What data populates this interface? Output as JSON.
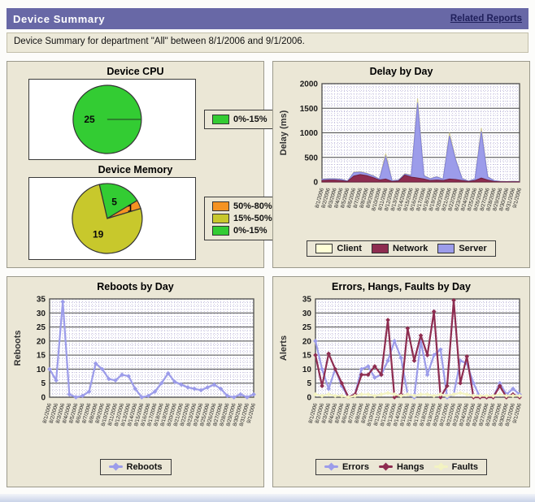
{
  "header": {
    "title": "Device Summary",
    "link_label": "Related Reports"
  },
  "subheader": {
    "text": "Device Summary for department \"All\" between 8/1/2006 and 9/1/2006."
  },
  "colors": {
    "header_bar": "#6868a6",
    "header_link": "#20205c",
    "panel_background": "#ebe7d6",
    "series_purple": "#9c9cea",
    "series_maroon": "#8e2c50",
    "series_cream": "#ffffd6",
    "pie_green": "#33cc33",
    "pie_olive": "#c8c82c",
    "pie_orange": "#f59322"
  },
  "chart_data": [
    {
      "id": "cpu",
      "type": "pie",
      "title": "Device CPU",
      "start_deg": 90,
      "slices": [
        {
          "label": "25",
          "value": 25,
          "color": "#33cc33",
          "legend": "0%-15%"
        }
      ],
      "legend": [
        {
          "label": "0%-15%",
          "color": "#33cc33",
          "marker": "box"
        }
      ]
    },
    {
      "id": "memory",
      "type": "pie",
      "title": "Device Memory",
      "start_deg": -13,
      "slices": [
        {
          "label": "5",
          "value": 5,
          "color": "#33cc33",
          "legend": "0%-15%"
        },
        {
          "label": "1",
          "value": 1,
          "color": "#f59322",
          "legend": "50%-80%",
          "label_r": 0.72
        },
        {
          "label": "19",
          "value": 19,
          "color": "#c8c82c",
          "legend": "15%-50%"
        }
      ],
      "legend": [
        {
          "label": "50%-80%",
          "color": "#f59322",
          "marker": "box"
        },
        {
          "label": "15%-50%",
          "color": "#c8c82c",
          "marker": "box"
        },
        {
          "label": "0%-15%",
          "color": "#33cc33",
          "marker": "box"
        }
      ]
    },
    {
      "id": "delay",
      "type": "area-stack",
      "title": "Delay by Day",
      "ylabel": "Delay (ms)",
      "ymax": 2000,
      "yticks": [
        0,
        500,
        1000,
        1500,
        2000
      ],
      "x": [
        "8/1/2006",
        "8/2/2006",
        "8/3/2006",
        "8/4/2006",
        "8/5/2006",
        "8/6/2006",
        "8/7/2006",
        "8/8/2006",
        "8/9/2006",
        "8/10/2006",
        "8/11/2006",
        "8/12/2006",
        "8/13/2006",
        "8/14/2006",
        "8/15/2006",
        "8/16/2006",
        "8/17/2006",
        "8/18/2006",
        "8/19/2006",
        "8/20/2006",
        "8/21/2006",
        "8/22/2006",
        "8/23/2006",
        "8/24/2006",
        "8/25/2006",
        "8/26/2006",
        "8/27/2006",
        "8/28/2006",
        "8/29/2006",
        "8/30/2006",
        "8/31/2006",
        "9/1/2006"
      ],
      "series": [
        {
          "name": "Network",
          "color": "#8e2c50",
          "stroke": "#6e1f3e",
          "values": [
            30,
            40,
            40,
            30,
            10,
            120,
            150,
            130,
            90,
            40,
            60,
            10,
            20,
            140,
            100,
            80,
            60,
            30,
            40,
            30,
            60,
            50,
            30,
            10,
            30,
            80,
            40,
            10,
            5,
            5,
            5,
            5
          ]
        },
        {
          "name": "Server",
          "color": "#9c9cea",
          "stroke": "#8080d8",
          "values": [
            25,
            25,
            25,
            25,
            8,
            70,
            50,
            42,
            35,
            17,
            460,
            17,
            17,
            20,
            32,
            1530,
            62,
            35,
            64,
            26,
            880,
            390,
            35,
            8,
            26,
            950,
            64,
            17,
            8,
            3,
            8,
            3
          ]
        },
        {
          "name": "Client",
          "color": "#ffffd6",
          "stroke": "#cfc98f",
          "values": [
            5,
            5,
            5,
            5,
            2,
            10,
            10,
            8,
            5,
            3,
            60,
            3,
            3,
            10,
            8,
            90,
            8,
            5,
            6,
            4,
            60,
            20,
            5,
            2,
            4,
            70,
            6,
            3,
            2,
            2,
            2,
            2
          ]
        }
      ],
      "legend": [
        {
          "label": "Client",
          "color": "#ffffd6",
          "marker": "box"
        },
        {
          "label": "Network",
          "color": "#8e2c50",
          "marker": "box"
        },
        {
          "label": "Server",
          "color": "#9c9cea",
          "marker": "box"
        }
      ]
    },
    {
      "id": "reboots",
      "type": "line",
      "title": "Reboots by Day",
      "ylabel": "Reboots",
      "ymax": 35,
      "yticks": [
        0,
        5,
        10,
        15,
        20,
        25,
        30,
        35
      ],
      "x": [
        "8/1/2006",
        "8/2/2006",
        "8/3/2006",
        "8/4/2006",
        "8/5/2006",
        "8/6/2006",
        "8/7/2006",
        "8/8/2006",
        "8/9/2006",
        "8/10/2006",
        "8/11/2006",
        "8/12/2006",
        "8/13/2006",
        "8/14/2006",
        "8/15/2006",
        "8/16/2006",
        "8/17/2006",
        "8/18/2006",
        "8/19/2006",
        "8/20/2006",
        "8/21/2006",
        "8/22/2006",
        "8/23/2006",
        "8/24/2006",
        "8/25/2006",
        "8/26/2006",
        "8/27/2006",
        "8/28/2006",
        "8/29/2006",
        "8/30/2006",
        "8/31/2006",
        "9/1/2006"
      ],
      "series": [
        {
          "name": "Reboots",
          "color": "#9c9cea",
          "values": [
            10,
            6,
            34,
            1,
            0,
            0.5,
            2,
            12,
            10,
            6.5,
            6,
            8,
            7.5,
            3,
            0,
            0.5,
            2,
            5,
            8.5,
            5.5,
            4.5,
            3.5,
            3,
            2.5,
            3.5,
            4.5,
            3,
            0.5,
            0,
            1,
            0,
            1
          ]
        }
      ],
      "legend": [
        {
          "label": "Reboots",
          "color": "#9c9cea",
          "marker": "line"
        }
      ]
    },
    {
      "id": "alerts",
      "type": "line",
      "title": "Errors, Hangs, Faults by Day",
      "ylabel": "Alerts",
      "ymax": 35,
      "yticks": [
        0,
        5,
        10,
        15,
        20,
        25,
        30,
        35
      ],
      "x": [
        "8/1/2006",
        "8/2/2006",
        "8/3/2006",
        "8/4/2006",
        "8/5/2006",
        "8/6/2006",
        "8/7/2006",
        "8/8/2006",
        "8/9/2006",
        "8/10/2006",
        "8/11/2006",
        "8/12/2006",
        "8/13/2006",
        "8/14/2006",
        "8/15/2006",
        "8/16/2006",
        "8/17/2006",
        "8/18/2006",
        "8/19/2006",
        "8/20/2006",
        "8/21/2006",
        "8/22/2006",
        "8/23/2006",
        "8/24/2006",
        "8/25/2006",
        "8/26/2006",
        "8/27/2006",
        "8/28/2006",
        "8/29/2006",
        "8/30/2006",
        "8/31/2006",
        "9/1/2006"
      ],
      "series": [
        {
          "name": "Errors",
          "color": "#9c9cea",
          "values": [
            20,
            10,
            3,
            10,
            4,
            0,
            1,
            10,
            11,
            7,
            8,
            13,
            20,
            14,
            1,
            0,
            20,
            8,
            15,
            17,
            0,
            1,
            13,
            12,
            5,
            0,
            0,
            0,
            5,
            1,
            3,
            1
          ]
        },
        {
          "name": "Hangs",
          "color": "#8e2c50",
          "values": [
            15,
            4,
            15.5,
            10,
            5,
            0,
            1,
            8,
            8,
            11,
            8,
            27.5,
            0,
            1,
            24.5,
            13,
            22,
            15,
            30.5,
            0,
            4,
            34.5,
            5,
            14.5,
            0,
            0,
            0,
            0,
            4,
            0,
            1,
            0
          ]
        },
        {
          "name": "Faults",
          "color": "#f3f3c2",
          "values": [
            1,
            0.5,
            1,
            0.5,
            0.5,
            0,
            0.5,
            1,
            1,
            0.5,
            1,
            1.5,
            1,
            0.5,
            1,
            0.5,
            1,
            1,
            0.5,
            1,
            0.5,
            1,
            1.5,
            1,
            0.5,
            0.5,
            0.5,
            0.5,
            1,
            0.5,
            0.5,
            0.5
          ]
        }
      ],
      "legend": [
        {
          "label": "Errors",
          "color": "#9c9cea",
          "marker": "line"
        },
        {
          "label": "Hangs",
          "color": "#8e2c50",
          "marker": "line"
        },
        {
          "label": "Faults",
          "color": "#f3f3c2",
          "marker": "line"
        }
      ]
    }
  ]
}
